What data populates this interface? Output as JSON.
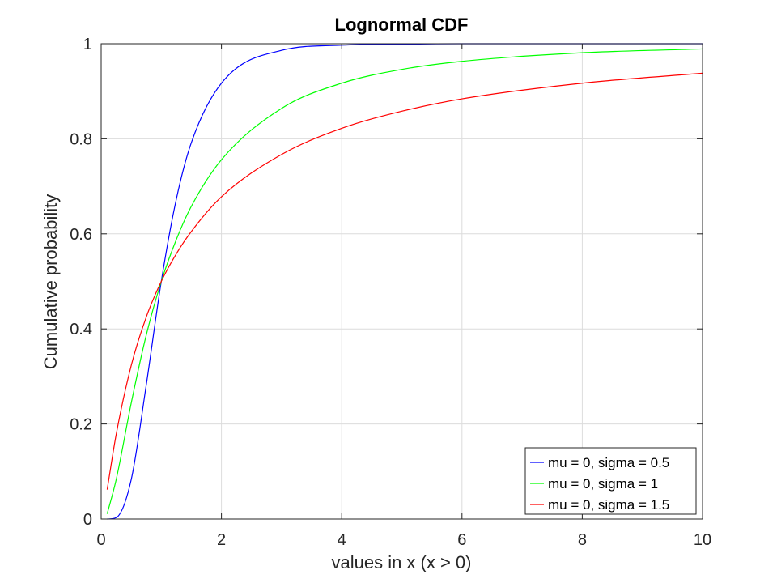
{
  "chart_data": {
    "type": "line",
    "title": "Lognormal CDF",
    "xlabel": "values in x (x > 0)",
    "ylabel": "Cumulative probability",
    "xlim": [
      0,
      10
    ],
    "ylim": [
      0,
      1
    ],
    "xticks": [
      "0",
      "2",
      "4",
      "6",
      "8",
      "10"
    ],
    "yticks": [
      "0",
      "0.2",
      "0.4",
      "0.6",
      "0.8",
      "1"
    ],
    "grid": true,
    "legend_position": "bottom-right",
    "x": [
      0.1,
      0.25,
      0.5,
      0.75,
      1,
      1.25,
      1.5,
      2,
      3,
      4,
      5,
      6,
      8,
      10
    ],
    "series": [
      {
        "name": "mu = 0, sigma = 0.5",
        "color": "#0000ff",
        "values": [
          0.0,
          0.003,
          0.083,
          0.282,
          0.5,
          0.673,
          0.792,
          0.917,
          0.986,
          0.997,
          0.999,
          1.0,
          1.0,
          1.0
        ]
      },
      {
        "name": "mu = 0, sigma = 1",
        "color": "#00ff00",
        "values": [
          0.011,
          0.083,
          0.244,
          0.387,
          0.5,
          0.588,
          0.658,
          0.756,
          0.864,
          0.917,
          0.946,
          0.963,
          0.981,
          0.989
        ]
      },
      {
        "name": "mu = 0, sigma = 1.5",
        "color": "#ff0000",
        "values": [
          0.062,
          0.178,
          0.323,
          0.425,
          0.5,
          0.558,
          0.605,
          0.678,
          0.767,
          0.822,
          0.858,
          0.884,
          0.917,
          0.938
        ]
      }
    ]
  }
}
